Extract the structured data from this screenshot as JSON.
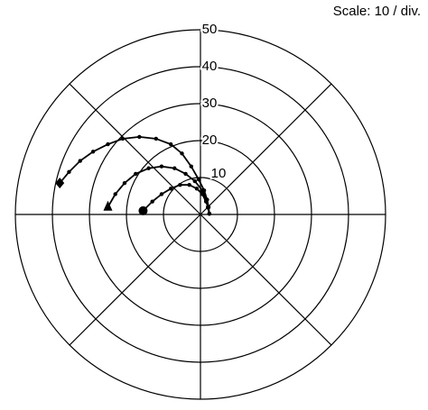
{
  "chart_data": {
    "type": "polar",
    "title": "Scale: 10 / div.",
    "rlim": [
      0,
      50
    ],
    "rticks": [
      10,
      20,
      30,
      40,
      50
    ],
    "spokes": 8,
    "color": "#000000",
    "series": [
      {
        "marker": "diamond",
        "x": [
          2.4,
          2.2,
          1.8,
          1,
          -0.5,
          -2.5,
          -5,
          -8,
          -12,
          -16.5,
          -21,
          -25,
          -29,
          -32.5,
          -35.5,
          -38
        ],
        "y": [
          0.2,
          2,
          4,
          6.5,
          9.5,
          13,
          16.5,
          19,
          20.5,
          21,
          20.5,
          19,
          17,
          14.5,
          11.5,
          8.5
        ]
      },
      {
        "marker": "triangle",
        "x": [
          2.4,
          2,
          1.5,
          0.5,
          -1.5,
          -4,
          -7,
          -10.5,
          -14,
          -17.5,
          -20.5,
          -23,
          -25
        ],
        "y": [
          0.2,
          2,
          4,
          6.5,
          9,
          11,
          12.5,
          13,
          12.5,
          11,
          8.5,
          5.5,
          2
        ]
      },
      {
        "marker": "circle",
        "x": [
          2.4,
          2.1,
          1.5,
          0.5,
          -1,
          -3,
          -5.5,
          -8,
          -10.5,
          -13,
          -15.5
        ],
        "y": [
          0.2,
          1.8,
          3.5,
          5.5,
          7,
          8,
          8,
          7,
          5.5,
          3.5,
          1
        ]
      }
    ]
  }
}
